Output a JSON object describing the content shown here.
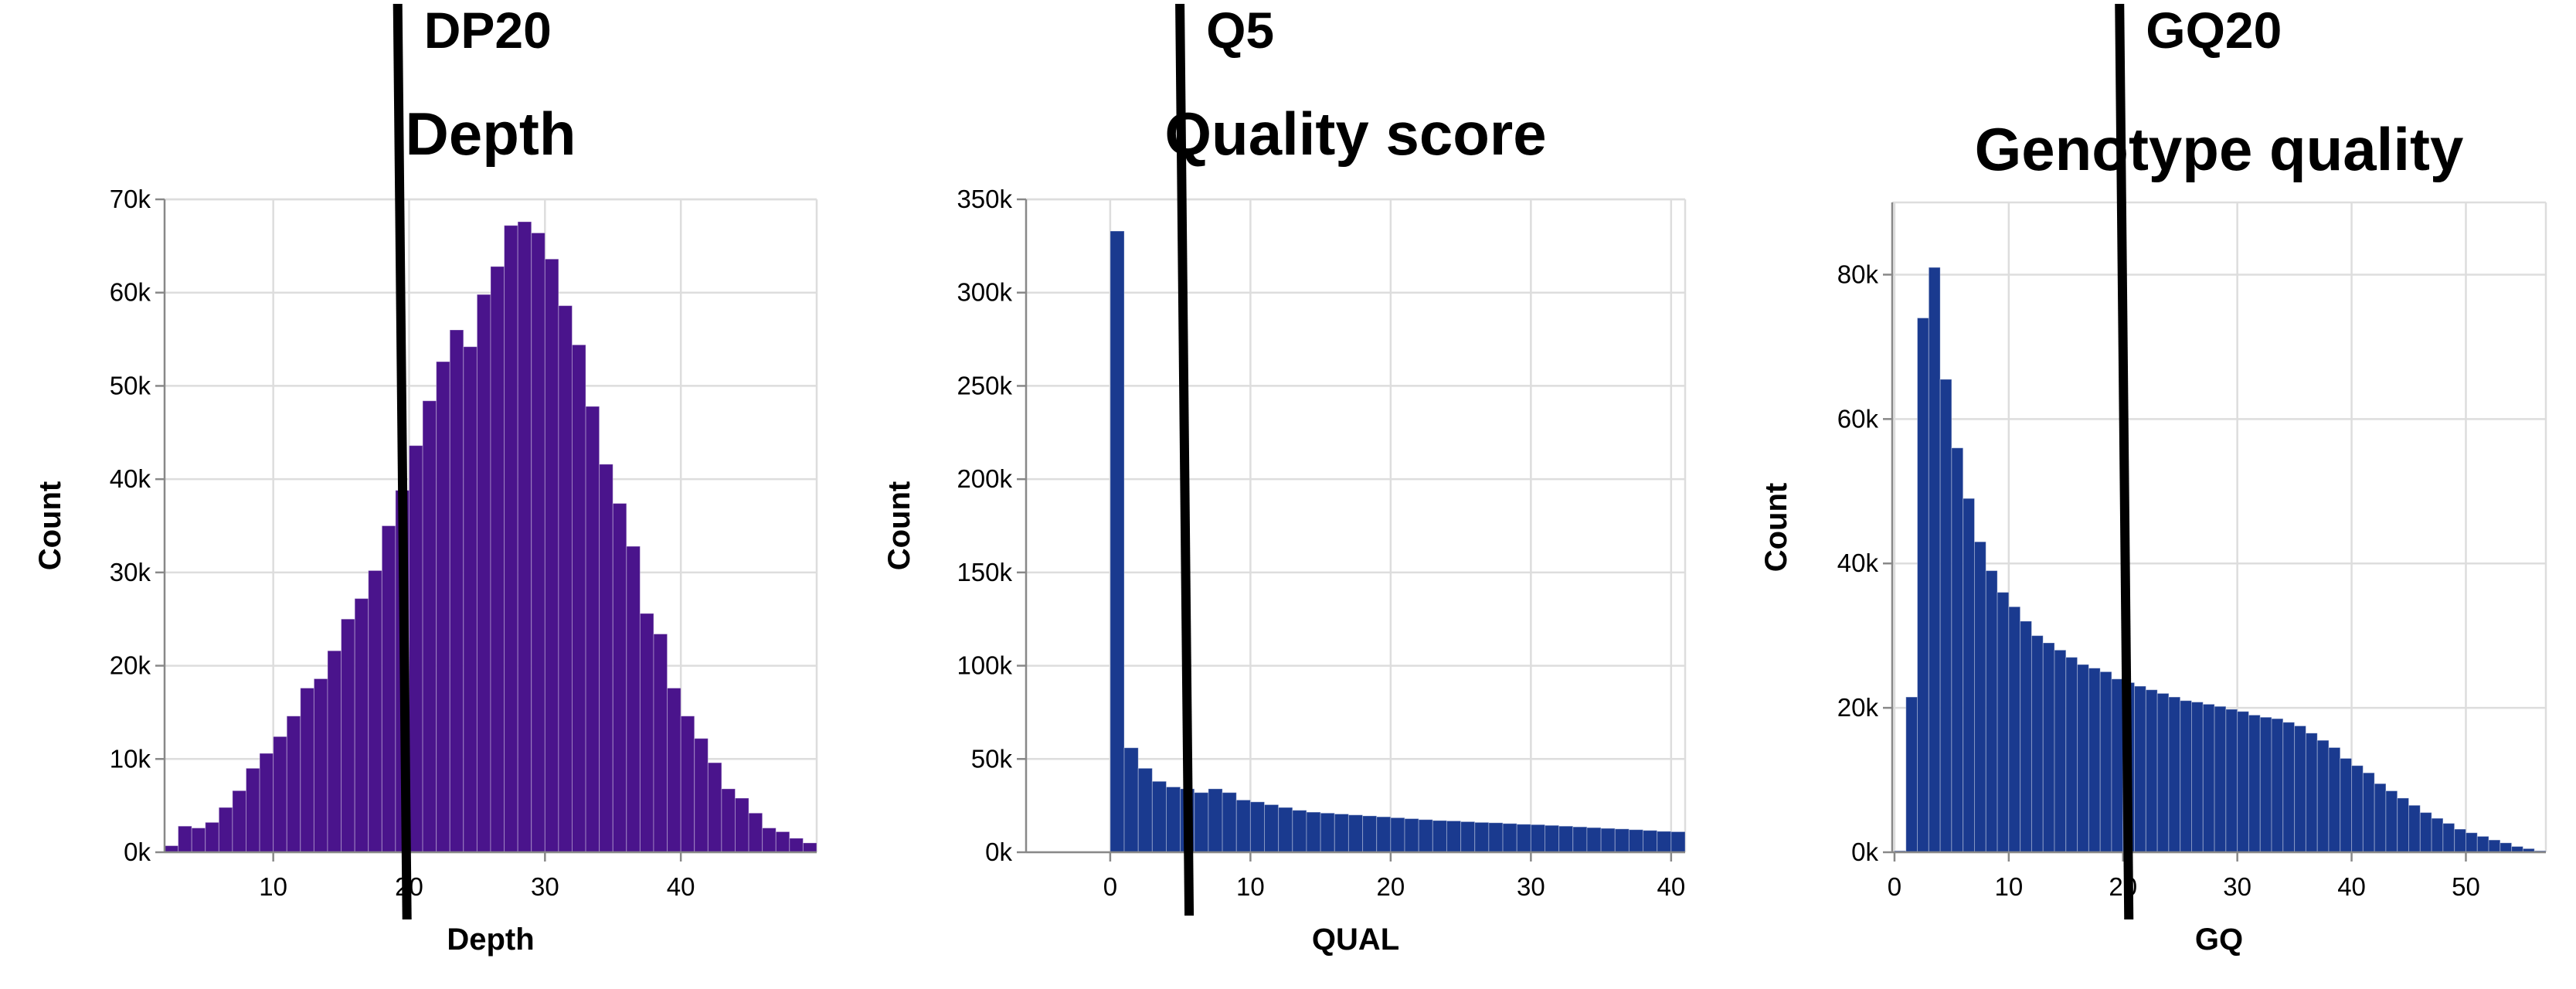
{
  "chart_data": [
    {
      "type": "bar",
      "title": "Depth",
      "xlabel": "Depth",
      "ylabel": "Count",
      "color": "#4a148c",
      "bin_width": 1,
      "x_start": 2,
      "xlim": [
        2,
        50
      ],
      "ylim": [
        0,
        70000
      ],
      "x_ticks": [
        10,
        20,
        30,
        40
      ],
      "x_tick_labels": [
        "10",
        "20",
        "30",
        "40"
      ],
      "y_ticks": [
        0,
        10000,
        20000,
        30000,
        40000,
        50000,
        60000,
        70000
      ],
      "y_tick_labels": [
        "0k",
        "10k",
        "20k",
        "30k",
        "40k",
        "50k",
        "60k",
        "70k"
      ],
      "grid": true,
      "values": [
        700,
        2800,
        2600,
        3200,
        4800,
        6600,
        9000,
        10600,
        12400,
        14600,
        17600,
        18600,
        21600,
        25000,
        27200,
        30200,
        35000,
        38800,
        43600,
        48400,
        52600,
        56000,
        54200,
        59800,
        62800,
        67200,
        67600,
        66400,
        63600,
        58600,
        54400,
        47800,
        41600,
        37400,
        32800,
        25600,
        23400,
        17600,
        14600,
        12200,
        9600,
        6800,
        5800,
        4200,
        2600,
        2200,
        1500,
        1000
      ],
      "threshold": {
        "x": 19.5,
        "label": "DP20"
      }
    },
    {
      "type": "bar",
      "title": "Quality score",
      "xlabel": "QUAL",
      "ylabel": "Count",
      "color": "#1a3a8f",
      "bin_width": 1,
      "x_start": 0,
      "xlim": [
        -6,
        41
      ],
      "ylim": [
        0,
        350000
      ],
      "x_ticks": [
        0,
        10,
        20,
        30,
        40
      ],
      "x_tick_labels": [
        "0",
        "10",
        "20",
        "30",
        "40"
      ],
      "y_ticks": [
        0,
        50000,
        100000,
        150000,
        200000,
        250000,
        300000,
        350000
      ],
      "y_tick_labels": [
        "0k",
        "50k",
        "100k",
        "150k",
        "200k",
        "250k",
        "300k",
        "350k"
      ],
      "grid": true,
      "values": [
        333000,
        56000,
        45000,
        38000,
        35000,
        34000,
        32000,
        34000,
        32000,
        28000,
        27000,
        25500,
        24000,
        22500,
        21500,
        21000,
        20500,
        20000,
        19500,
        19000,
        18500,
        18000,
        17500,
        17000,
        16800,
        16400,
        16000,
        15800,
        15400,
        15000,
        14800,
        14400,
        14000,
        13600,
        13200,
        12800,
        12500,
        12100,
        11700,
        11200,
        11000
      ],
      "threshold": {
        "x": 5.3,
        "label": "Q5"
      }
    },
    {
      "type": "bar",
      "title": "Genotype quality",
      "xlabel": "GQ",
      "ylabel": "Count",
      "color": "#1a3a8f",
      "bin_width": 1,
      "x_start": 0,
      "xlim": [
        -0.2,
        57
      ],
      "ylim": [
        0,
        90000
      ],
      "x_ticks": [
        0,
        10,
        20,
        30,
        40,
        50
      ],
      "x_tick_labels": [
        "0",
        "10",
        "20",
        "30",
        "40",
        "50"
      ],
      "y_ticks": [
        0,
        20000,
        40000,
        60000,
        80000
      ],
      "y_tick_labels": [
        "0k",
        "20k",
        "40k",
        "60k",
        "80k"
      ],
      "grid": true,
      "values": [
        200,
        21500,
        74000,
        81000,
        65500,
        56000,
        49000,
        43000,
        39000,
        36000,
        34000,
        32000,
        30000,
        29000,
        28000,
        27000,
        26000,
        25500,
        25000,
        24000,
        23500,
        23000,
        22500,
        22000,
        21500,
        21000,
        20800,
        20500,
        20200,
        19800,
        19500,
        19000,
        18700,
        18500,
        18000,
        17500,
        16500,
        15500,
        14500,
        13000,
        12000,
        11000,
        9500,
        8500,
        7500,
        6500,
        5500,
        4700,
        4000,
        3200,
        2700,
        2200,
        1700,
        1300,
        800,
        500,
        200
      ],
      "threshold": {
        "x": 20.1,
        "label": "GQ20"
      }
    }
  ]
}
